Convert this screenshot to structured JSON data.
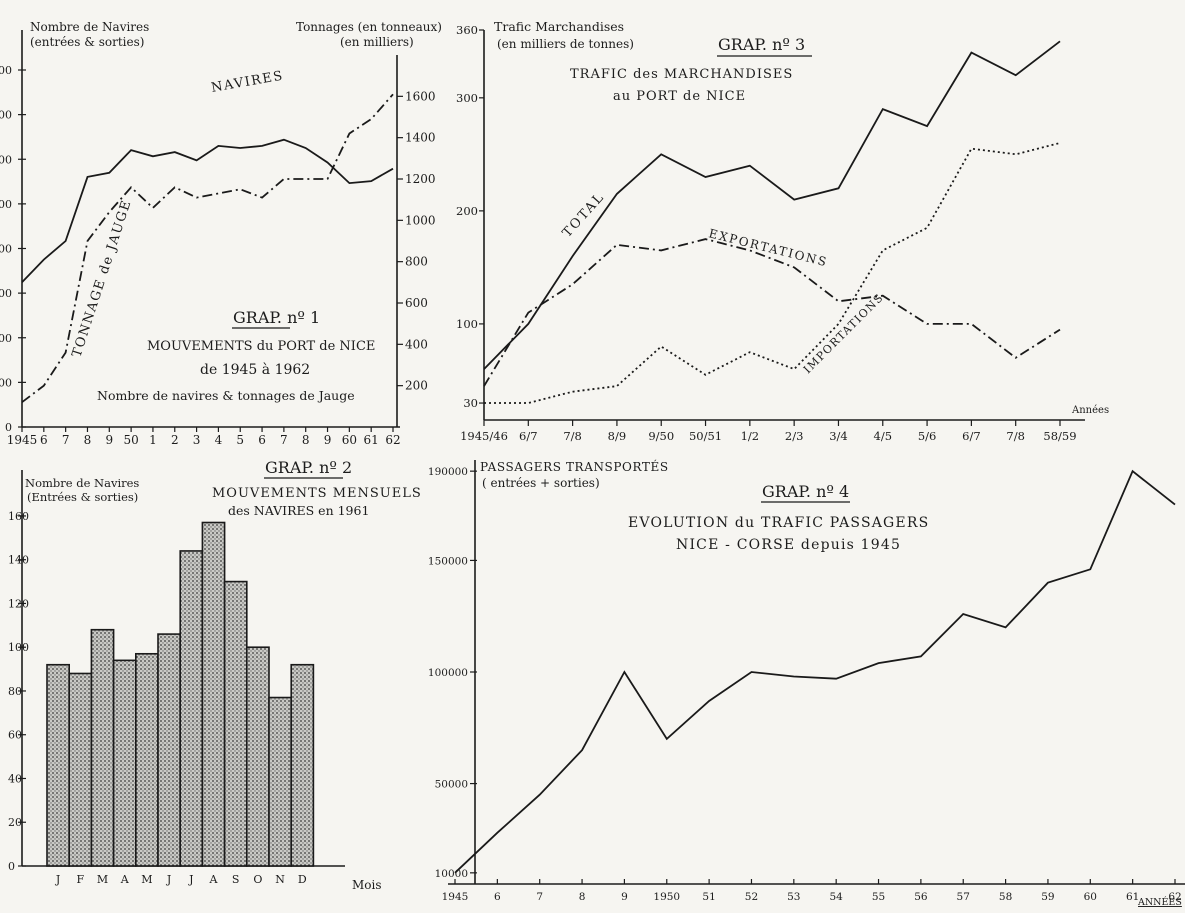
{
  "chart_data": [
    {
      "id": "grap1",
      "type": "line",
      "title": "GRAP. nº 1",
      "subtitle_lines": [
        "MOUVEMENTS du PORT de NICE",
        "de 1945 à 1962",
        "Nombre de navires & tonnages de Jauge"
      ],
      "left_axis_title": [
        "Nombre de Navires",
        "(entrées & sorties)"
      ],
      "right_axis_title": [
        "Tonnages (en tonneaux)",
        "(en milliers)"
      ],
      "x": [
        "1945",
        "6",
        "7",
        "8",
        "9",
        "50",
        "1",
        "2",
        "3",
        "4",
        "5",
        "6",
        "7",
        "8",
        "9",
        "60",
        "61",
        "62"
      ],
      "right_ticks": [
        "1600",
        "1400",
        "1200",
        "1000",
        "800",
        "600",
        "400",
        "200"
      ],
      "left_ticks": [
        "0",
        "00",
        "00",
        "00",
        "00",
        "00",
        "00",
        "00",
        "00"
      ],
      "ylim_right": [
        0,
        1800
      ],
      "series": [
        {
          "name": "NAVIRES",
          "style": "solid",
          "values": [
            700,
            810,
            900,
            1210,
            1230,
            1340,
            1310,
            1330,
            1290,
            1360,
            1350,
            1360,
            1390,
            1350,
            1280,
            1180,
            1190,
            1250
          ]
        },
        {
          "name": "TONNAGE de JAUGE",
          "style": "dashdot",
          "values": [
            120,
            200,
            360,
            900,
            1040,
            1160,
            1060,
            1160,
            1110,
            1130,
            1150,
            1110,
            1200,
            1200,
            1200,
            1420,
            1490,
            1610
          ]
        }
      ]
    },
    {
      "id": "grap3",
      "type": "line",
      "title": "GRAP. nº 3",
      "subtitle_lines": [
        "TRAFIC des MARCHANDISES",
        "au PORT de NICE"
      ],
      "y_axis_title": [
        "Trafic Marchandises",
        "(en milliers de tonnes)"
      ],
      "x_axis_title": "Années",
      "x": [
        "1945/46",
        "6/7",
        "7/8",
        "8/9",
        "9/50",
        "50/51",
        "1/2",
        "2/3",
        "3/4",
        "4/5",
        "5/6",
        "6/7",
        "7/8",
        "58/59"
      ],
      "y_ticks": [
        {
          "label": "360",
          "value": 360
        },
        {
          "label": "300",
          "value": 300
        },
        {
          "label": "200",
          "value": 200
        },
        {
          "label": "100",
          "value": 100
        },
        {
          "label": "30",
          "value": 30
        }
      ],
      "ylim": [
        15,
        360
      ],
      "series": [
        {
          "name": "TOTAL",
          "style": "solid",
          "values": [
            60,
            100,
            160,
            215,
            250,
            230,
            240,
            210,
            220,
            290,
            275,
            340,
            320,
            350
          ]
        },
        {
          "name": "EXPORTATIONS",
          "style": "dashdot",
          "values": [
            45,
            110,
            135,
            170,
            165,
            175,
            165,
            150,
            120,
            125,
            100,
            100,
            70,
            95
          ]
        },
        {
          "name": "IMPORTATIONS",
          "style": "dotted",
          "values": [
            30,
            30,
            40,
            45,
            80,
            55,
            75,
            60,
            100,
            165,
            185,
            255,
            250,
            260
          ]
        }
      ]
    },
    {
      "id": "grap2",
      "type": "bar",
      "title": "GRAP. nº 2",
      "subtitle_lines": [
        "MOUVEMENTS MENSUELS",
        "des NAVIRES en 1961"
      ],
      "y_axis_title": [
        "Nombre de Navires",
        "(Entrées & sorties)"
      ],
      "x_axis_title": "Mois",
      "categories": [
        "J",
        "F",
        "M",
        "A",
        "M",
        "J",
        "J",
        "A",
        "S",
        "O",
        "N",
        "D"
      ],
      "values": [
        92,
        88,
        108,
        94,
        97,
        106,
        144,
        157,
        130,
        100,
        77,
        92
      ],
      "y_ticks": [
        "0",
        "20",
        "40",
        "60",
        "80",
        "100",
        "120",
        "140",
        "160"
      ],
      "ylim": [
        0,
        165
      ]
    },
    {
      "id": "grap4",
      "type": "line",
      "title": "GRAP. nº 4",
      "subtitle_lines": [
        "EVOLUTION du TRAFIC PASSAGERS",
        "NICE - CORSE depuis 1945"
      ],
      "y_axis_title": [
        "PASSAGERS TRANSPORTÉS",
        "( entrées + sorties)"
      ],
      "x_axis_title": "ANNÉES",
      "x": [
        "1945",
        "6",
        "7",
        "8",
        "9",
        "1950",
        "51",
        "52",
        "53",
        "54",
        "55",
        "56",
        "57",
        "58",
        "59",
        "60",
        "61",
        "62"
      ],
      "y_ticks": [
        {
          "label": "190000",
          "value": 190000
        },
        {
          "label": "150000",
          "value": 150000
        },
        {
          "label": "100000",
          "value": 100000
        },
        {
          "label": "50000",
          "value": 50000
        },
        {
          "label": "10000",
          "value": 10000
        }
      ],
      "ylim": [
        5000,
        195000
      ],
      "series": [
        {
          "name": "",
          "style": "solid",
          "values": [
            10000,
            28000,
            45000,
            65000,
            100000,
            70000,
            87000,
            100000,
            98000,
            97000,
            104000,
            107000,
            126000,
            120000,
            140000,
            146000,
            190000,
            175000
          ]
        }
      ]
    }
  ]
}
